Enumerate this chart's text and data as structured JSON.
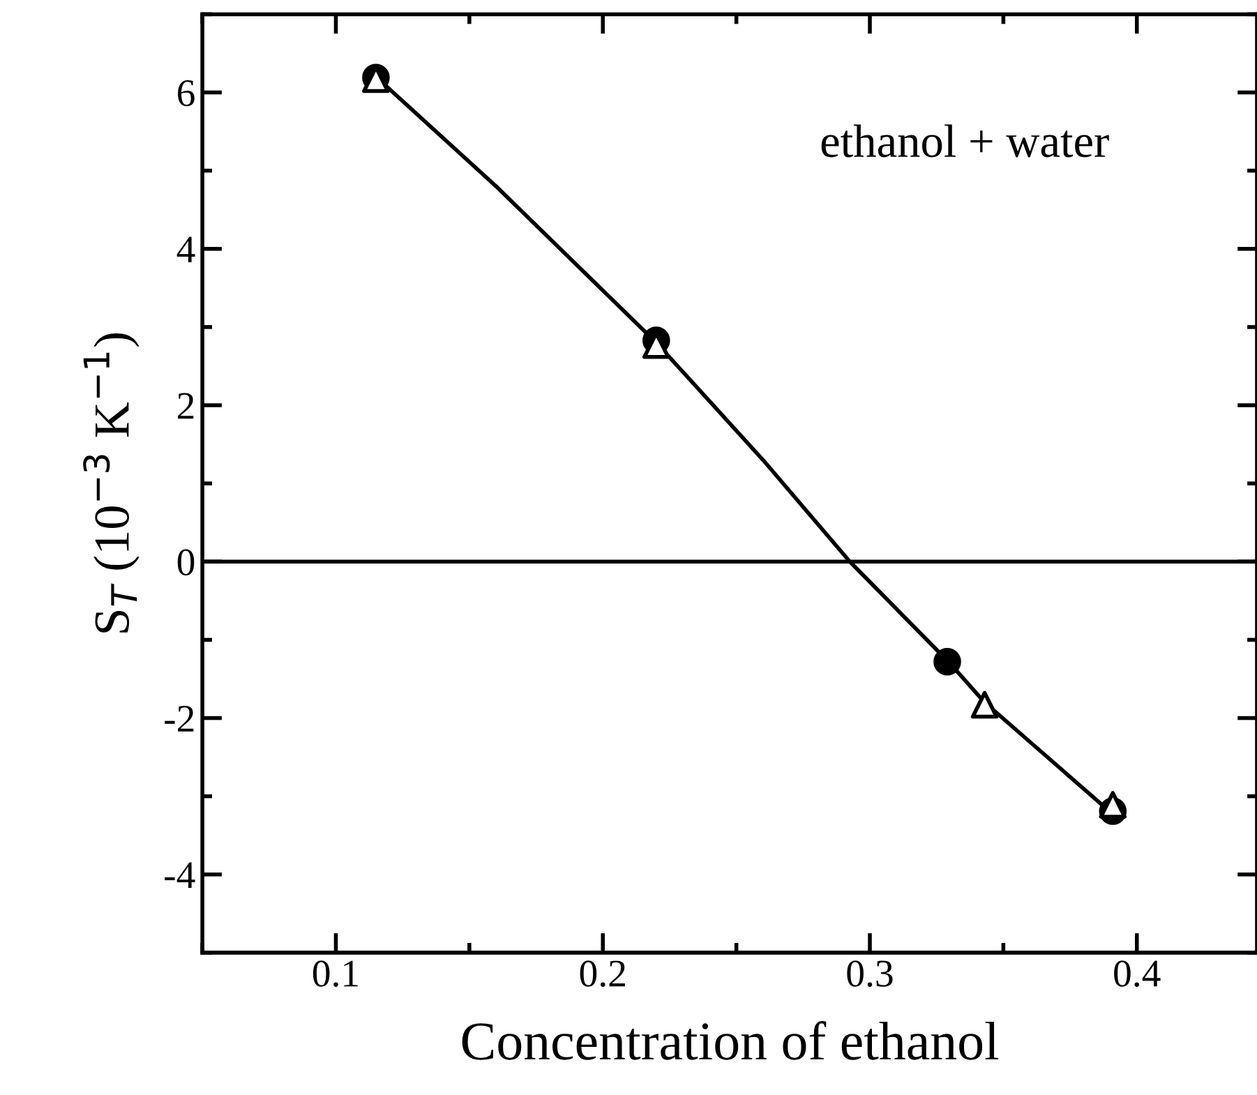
{
  "chart_data": {
    "type": "scatter",
    "xlabel": "Concentration of ethanol",
    "ylabel": "S$_{T}$ (10$^{−3}$ K$^{−1}$)",
    "annotations": [
      "ethanol + water"
    ],
    "xlim": [
      0.05,
      0.445
    ],
    "xticks": [
      0.1,
      0.2,
      0.3,
      0.4
    ],
    "ylim": [
      -5,
      7
    ],
    "yticks": [
      -4,
      -2,
      0,
      2,
      4,
      6
    ],
    "grid": false,
    "legend": false,
    "ref_lines": [
      {
        "axis": "y",
        "value": 0,
        "color": "#000000",
        "line_style": "solid"
      }
    ],
    "series": [
      {
        "type": "line",
        "color": "#000000",
        "marker": "none",
        "line_style": "solid",
        "x": [
          0.115,
          0.16,
          0.22,
          0.26,
          0.2925,
          0.33,
          0.343,
          0.39
        ],
        "values": [
          6.2,
          4.8,
          2.8,
          1.3,
          0,
          -1.3,
          -1.8,
          -3.2
        ]
      },
      {
        "color": "#000000",
        "marker": "circle",
        "x": [
          0.115,
          0.22,
          0.329,
          0.391
        ],
        "values": [
          6.19,
          2.83,
          -1.28,
          -3.19
        ]
      },
      {
        "color": "#000000",
        "marker": "triangle",
        "x": [
          0.115,
          0.22,
          0.343,
          0.391
        ],
        "values": [
          6.17,
          2.77,
          -1.83,
          -3.11
        ]
      }
    ]
  }
}
